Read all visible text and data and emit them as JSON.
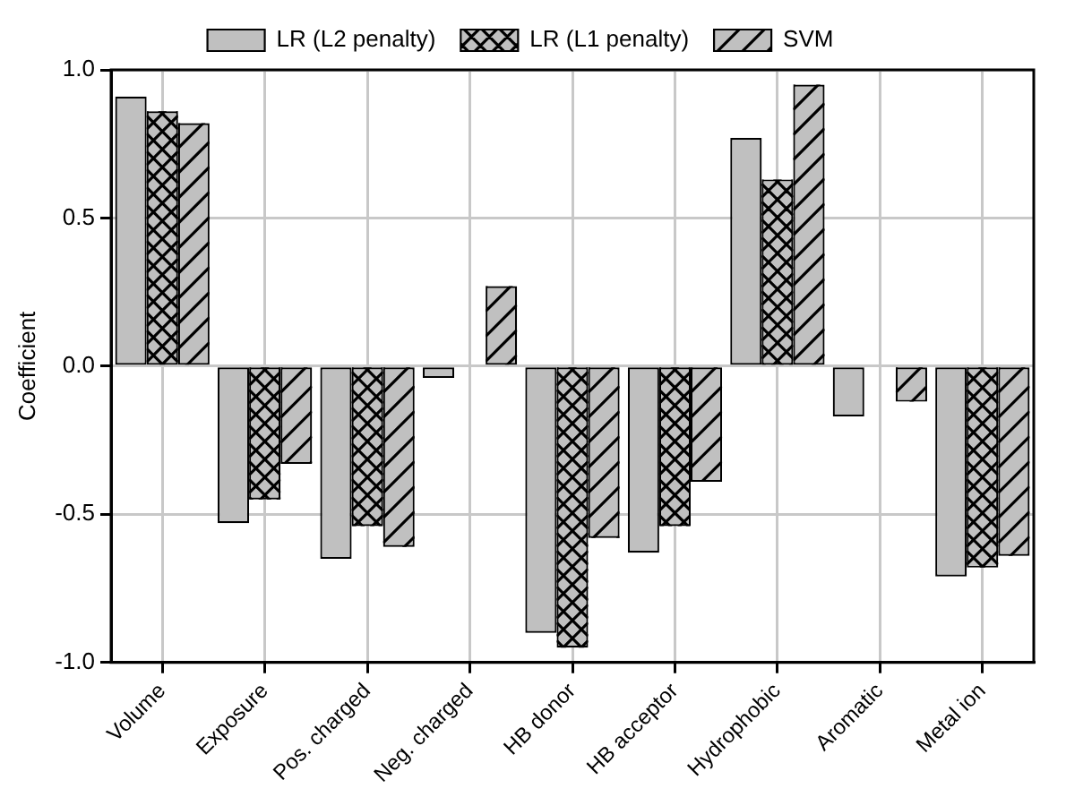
{
  "chart_data": {
    "type": "bar",
    "ylabel": "Coefficient",
    "categories": [
      "Volume",
      "Exposure",
      "Pos. charged",
      "Neg. charged",
      "HB donor",
      "HB acceptor",
      "Hydrophobic",
      "Aromatic",
      "Metal ion"
    ],
    "series": [
      {
        "name": "LR (L2 penalty)",
        "color": "#c0c0c0",
        "values": [
          0.91,
          -0.53,
          -0.65,
          -0.04,
          -0.9,
          -0.63,
          0.77,
          -0.17,
          -0.71
        ]
      },
      {
        "name": "LR (L1 penalty)",
        "color": "#c0c0c0",
        "values": [
          0.86,
          -0.45,
          -0.54,
          0,
          -0.95,
          -0.54,
          0.63,
          0,
          -0.68
        ]
      },
      {
        "name": "SVM",
        "color": "#c0c0c0",
        "values": [
          0.82,
          -0.33,
          -0.61,
          0.27,
          -0.58,
          -0.39,
          0.95,
          -0.12,
          -0.64
        ]
      }
    ],
    "ylim": [
      -1,
      1
    ],
    "yticks": [
      {
        "value": -1,
        "label": "-1.0"
      },
      {
        "value": -0.5,
        "label": "-0.5"
      },
      {
        "value": 0,
        "label": "0.0"
      },
      {
        "value": 0.5,
        "label": "0.5"
      },
      {
        "value": 1,
        "label": "1.0"
      }
    ],
    "grid": true,
    "legend": "top"
  }
}
